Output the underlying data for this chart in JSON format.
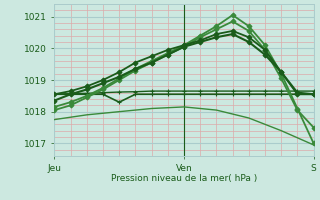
{
  "bg_color": "#cce8e0",
  "grid_color_major": "#aacccc",
  "grid_color_minor": "#ddaaaa",
  "line_color_dark": "#1a5c1a",
  "line_color_light": "#3a8a3a",
  "title": "Pression niveau de la mer( hPa )",
  "xlabel_jeu": "Jeu",
  "xlabel_ven": "Ven",
  "xlabel_s": "S",
  "ylim": [
    1016.6,
    1021.4
  ],
  "yticks": [
    1017,
    1018,
    1019,
    1020,
    1021
  ],
  "xlim": [
    0,
    48
  ],
  "x_jeu": 0,
  "x_ven": 24,
  "x_s": 48,
  "series": [
    {
      "x": [
        0,
        3,
        6,
        9,
        12,
        15,
        18,
        21,
        24,
        27,
        30,
        33,
        36,
        39,
        42,
        45,
        48
      ],
      "y": [
        1018.55,
        1018.55,
        1018.55,
        1018.55,
        1018.3,
        1018.55,
        1018.55,
        1018.55,
        1018.55,
        1018.55,
        1018.55,
        1018.55,
        1018.55,
        1018.55,
        1018.55,
        1018.55,
        1018.55
      ],
      "style": "dark",
      "lw": 1.2,
      "marker": "+",
      "ms": 3.5
    },
    {
      "x": [
        0,
        3,
        6,
        9,
        12,
        15,
        18,
        21,
        24,
        27,
        30,
        33,
        36,
        39,
        42,
        45,
        48
      ],
      "y": [
        1018.55,
        1018.57,
        1018.58,
        1018.6,
        1018.62,
        1018.63,
        1018.65,
        1018.65,
        1018.65,
        1018.65,
        1018.65,
        1018.65,
        1018.65,
        1018.65,
        1018.65,
        1018.65,
        1018.65
      ],
      "style": "dark",
      "lw": 1.0,
      "marker": "+",
      "ms": 3.5
    },
    {
      "x": [
        0,
        6,
        12,
        18,
        24,
        30,
        36,
        42,
        48
      ],
      "y": [
        1017.75,
        1017.9,
        1018.0,
        1018.1,
        1018.15,
        1018.05,
        1017.8,
        1017.4,
        1016.95
      ],
      "style": "light",
      "lw": 1.0,
      "marker": null,
      "ms": 0
    },
    {
      "x": [
        0,
        3,
        6,
        9,
        12,
        15,
        18,
        21,
        24,
        27,
        30,
        33,
        36,
        39,
        42,
        45,
        48
      ],
      "y": [
        1018.15,
        1018.3,
        1018.5,
        1018.75,
        1019.05,
        1019.35,
        1019.6,
        1019.85,
        1020.1,
        1020.4,
        1020.7,
        1021.05,
        1020.7,
        1020.1,
        1019.2,
        1018.1,
        1017.0
      ],
      "style": "light",
      "lw": 1.3,
      "marker": "D",
      "ms": 2.5
    },
    {
      "x": [
        0,
        3,
        6,
        9,
        12,
        15,
        18,
        21,
        24,
        27,
        30,
        33,
        36,
        39,
        42,
        45,
        48
      ],
      "y": [
        1018.05,
        1018.2,
        1018.45,
        1018.7,
        1019.0,
        1019.3,
        1019.55,
        1019.8,
        1020.05,
        1020.35,
        1020.6,
        1020.85,
        1020.55,
        1019.95,
        1019.05,
        1018.05,
        1017.5
      ],
      "style": "light",
      "lw": 1.3,
      "marker": "D",
      "ms": 2.5
    },
    {
      "x": [
        0,
        3,
        6,
        9,
        12,
        15,
        18,
        21,
        24,
        27,
        30,
        33,
        36,
        39,
        42,
        45,
        48
      ],
      "y": [
        1018.55,
        1018.65,
        1018.8,
        1019.0,
        1019.25,
        1019.55,
        1019.75,
        1019.95,
        1020.1,
        1020.25,
        1020.45,
        1020.55,
        1020.35,
        1019.95,
        1019.25,
        1018.55,
        1018.55
      ],
      "style": "dark",
      "lw": 1.3,
      "marker": "D",
      "ms": 2.5
    },
    {
      "x": [
        0,
        3,
        6,
        9,
        12,
        15,
        18,
        21,
        24,
        27,
        30,
        33,
        36,
        39,
        42,
        45,
        48
      ],
      "y": [
        1018.35,
        1018.55,
        1018.7,
        1018.9,
        1019.1,
        1019.35,
        1019.55,
        1019.8,
        1020.05,
        1020.2,
        1020.35,
        1020.45,
        1020.2,
        1019.8,
        1019.25,
        1018.6,
        1018.55
      ],
      "style": "dark",
      "lw": 1.5,
      "marker": "D",
      "ms": 2.5
    }
  ]
}
